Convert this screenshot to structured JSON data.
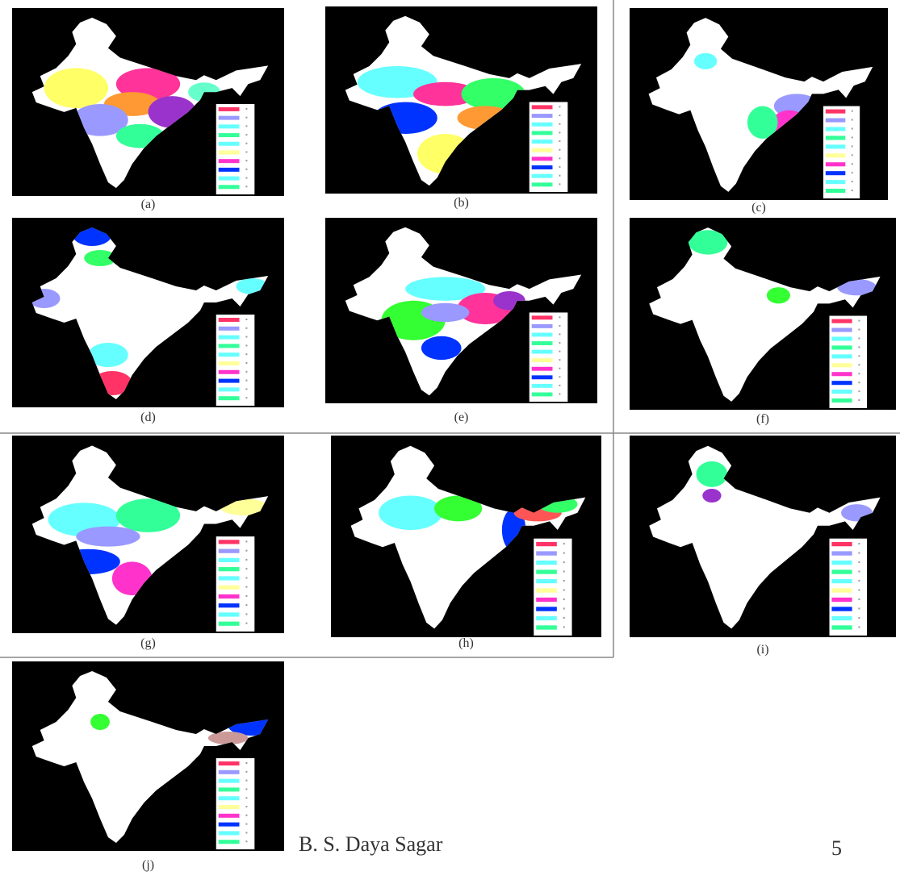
{
  "panels": [
    {
      "label": "(a)"
    },
    {
      "label": "(b)"
    },
    {
      "label": "(c)"
    },
    {
      "label": "(d)"
    },
    {
      "label": "(e)"
    },
    {
      "label": "(f)"
    },
    {
      "label": "(g)"
    },
    {
      "label": "(h)"
    },
    {
      "label": "(i)"
    },
    {
      "label": "(j)"
    }
  ],
  "footer": {
    "author": "B. S. Daya Sagar",
    "page": "5"
  }
}
